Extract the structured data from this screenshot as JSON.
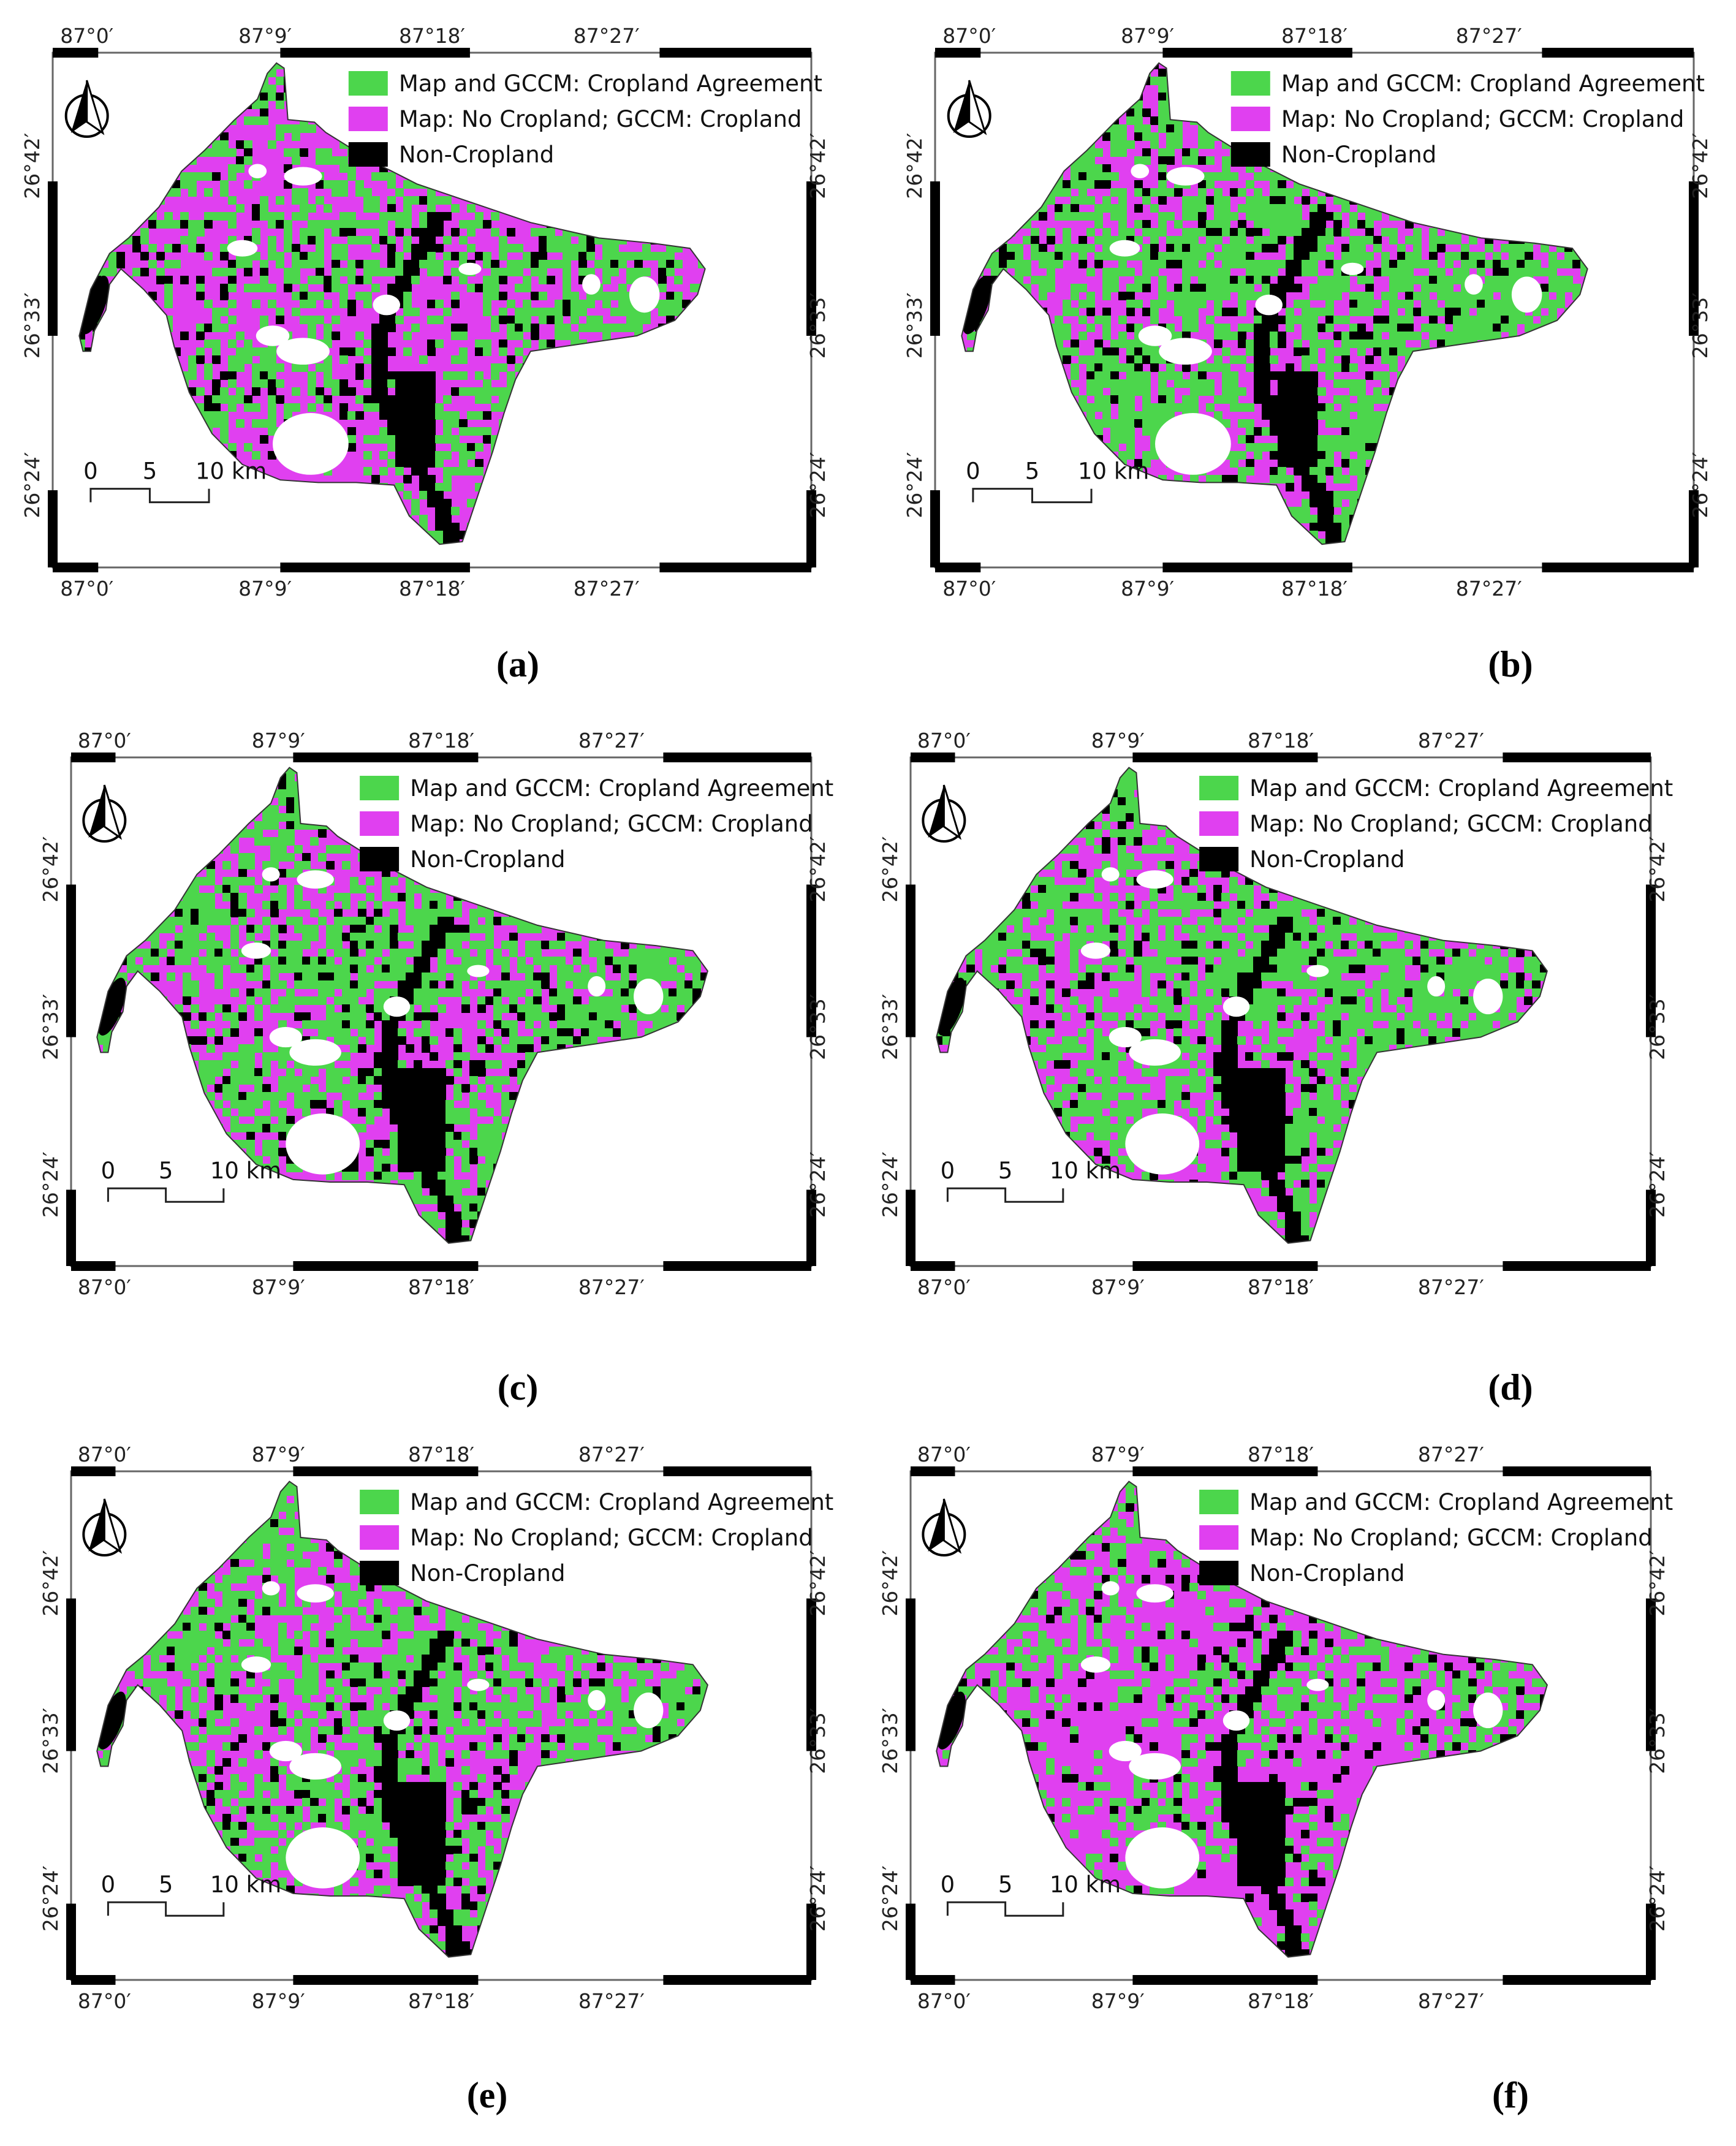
{
  "legend": [
    {
      "label": "Map and GCCM: Cropland Agreement",
      "color": "#4cd64c"
    },
    {
      "label": "Map: No Cropland; GCCM: Cropland",
      "color": "#e040f0"
    },
    {
      "label": "Non-Cropland",
      "color": "#000000"
    }
  ],
  "longitude_labels": [
    "87°0′",
    "87°9′",
    "87°18′",
    "87°27′"
  ],
  "latitude_labels": [
    "26°42′",
    "26°33′",
    "26°24′"
  ],
  "scale_bar": {
    "labels": [
      "0",
      "5",
      "10 km"
    ]
  },
  "north_arrow": "north-arrow-icon",
  "panels": [
    {
      "caption": "(a)",
      "green_share": 0.42
    },
    {
      "caption": "(b)",
      "green_share": 0.62
    },
    {
      "caption": "(c)",
      "green_share": 0.58
    },
    {
      "caption": "(d)",
      "green_share": 0.6
    },
    {
      "caption": "(e)",
      "green_share": 0.57
    },
    {
      "caption": "(f)",
      "green_share": 0.3
    }
  ]
}
